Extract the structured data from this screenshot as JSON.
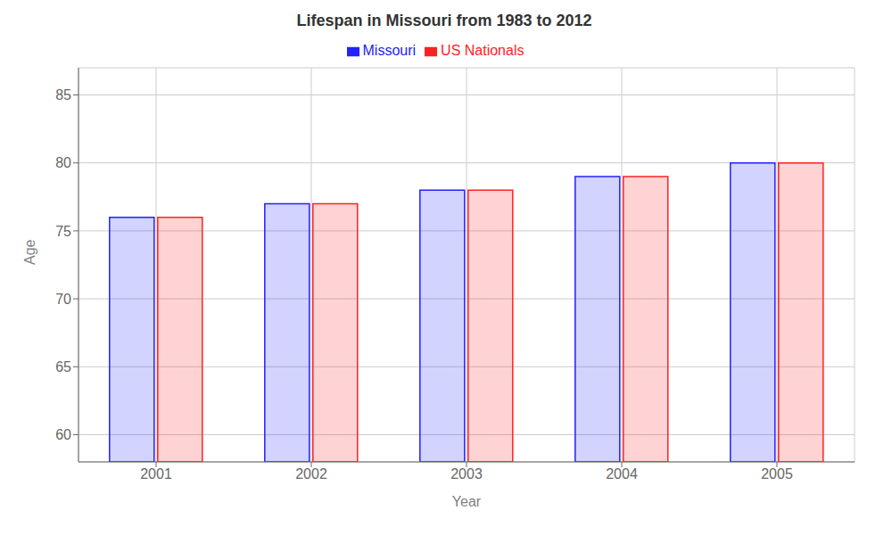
{
  "chart_data": {
    "type": "bar",
    "title": "Lifespan in Missouri from 1983 to 2012",
    "x_label": "Year",
    "y_label": "Age",
    "categories": [
      "2001",
      "2002",
      "2003",
      "2004",
      "2005"
    ],
    "series": [
      {
        "name": "Missouri",
        "color": "#2222ff",
        "values": [
          76.0,
          77.0,
          78.0,
          79.0,
          80.0
        ]
      },
      {
        "name": "US Nationals",
        "color": "#ff2222",
        "values": [
          76.0,
          77.0,
          78.0,
          79.0,
          80.0
        ]
      }
    ],
    "ylim": [
      58,
      87
    ],
    "yticks": [
      60,
      65,
      70,
      75,
      80,
      85
    ],
    "grid": true,
    "legend": "top"
  }
}
